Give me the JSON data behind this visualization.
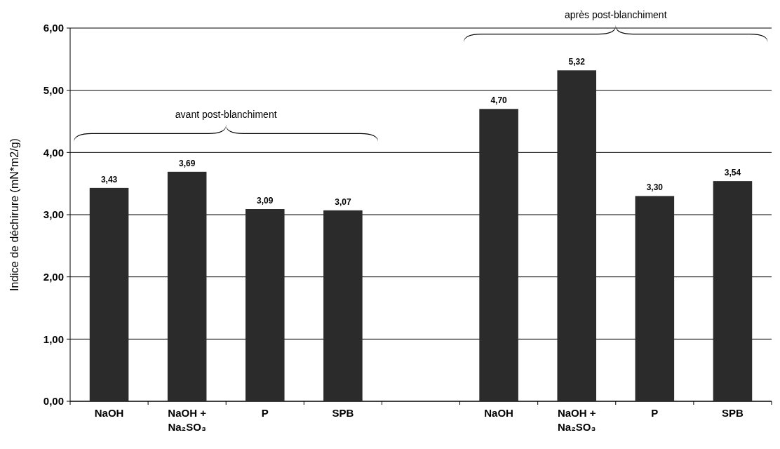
{
  "chart_data": {
    "type": "bar",
    "ylabel": "Indice de déchirure (mN*m2/g)",
    "categories": [
      "NaOH",
      "NaOH + Na₂SO₃",
      "P",
      "SPB",
      null,
      "NaOH",
      "NaOH + Na₂SO₃",
      "P",
      "SPB"
    ],
    "values": [
      3.43,
      3.69,
      3.09,
      3.07,
      null,
      4.7,
      5.32,
      3.3,
      3.54
    ],
    "value_labels": [
      "3,43",
      "3,69",
      "3,09",
      "3,07",
      null,
      "4,70",
      "5,32",
      "3,30",
      "3,54"
    ],
    "color": "#2b2b2b",
    "ylim": [
      0,
      6
    ],
    "yticks": [
      {
        "value": 0,
        "label": "0,00"
      },
      {
        "value": 1,
        "label": "1,00"
      },
      {
        "value": 2,
        "label": "2,00"
      },
      {
        "value": 3,
        "label": "3,00"
      },
      {
        "value": 4,
        "label": "4,00"
      },
      {
        "value": 5,
        "label": "5,00"
      },
      {
        "value": 6,
        "label": "6,00"
      }
    ],
    "grid": "y",
    "annotations": [
      "avant post-blanchiment",
      "après post-blanchiment"
    ]
  }
}
